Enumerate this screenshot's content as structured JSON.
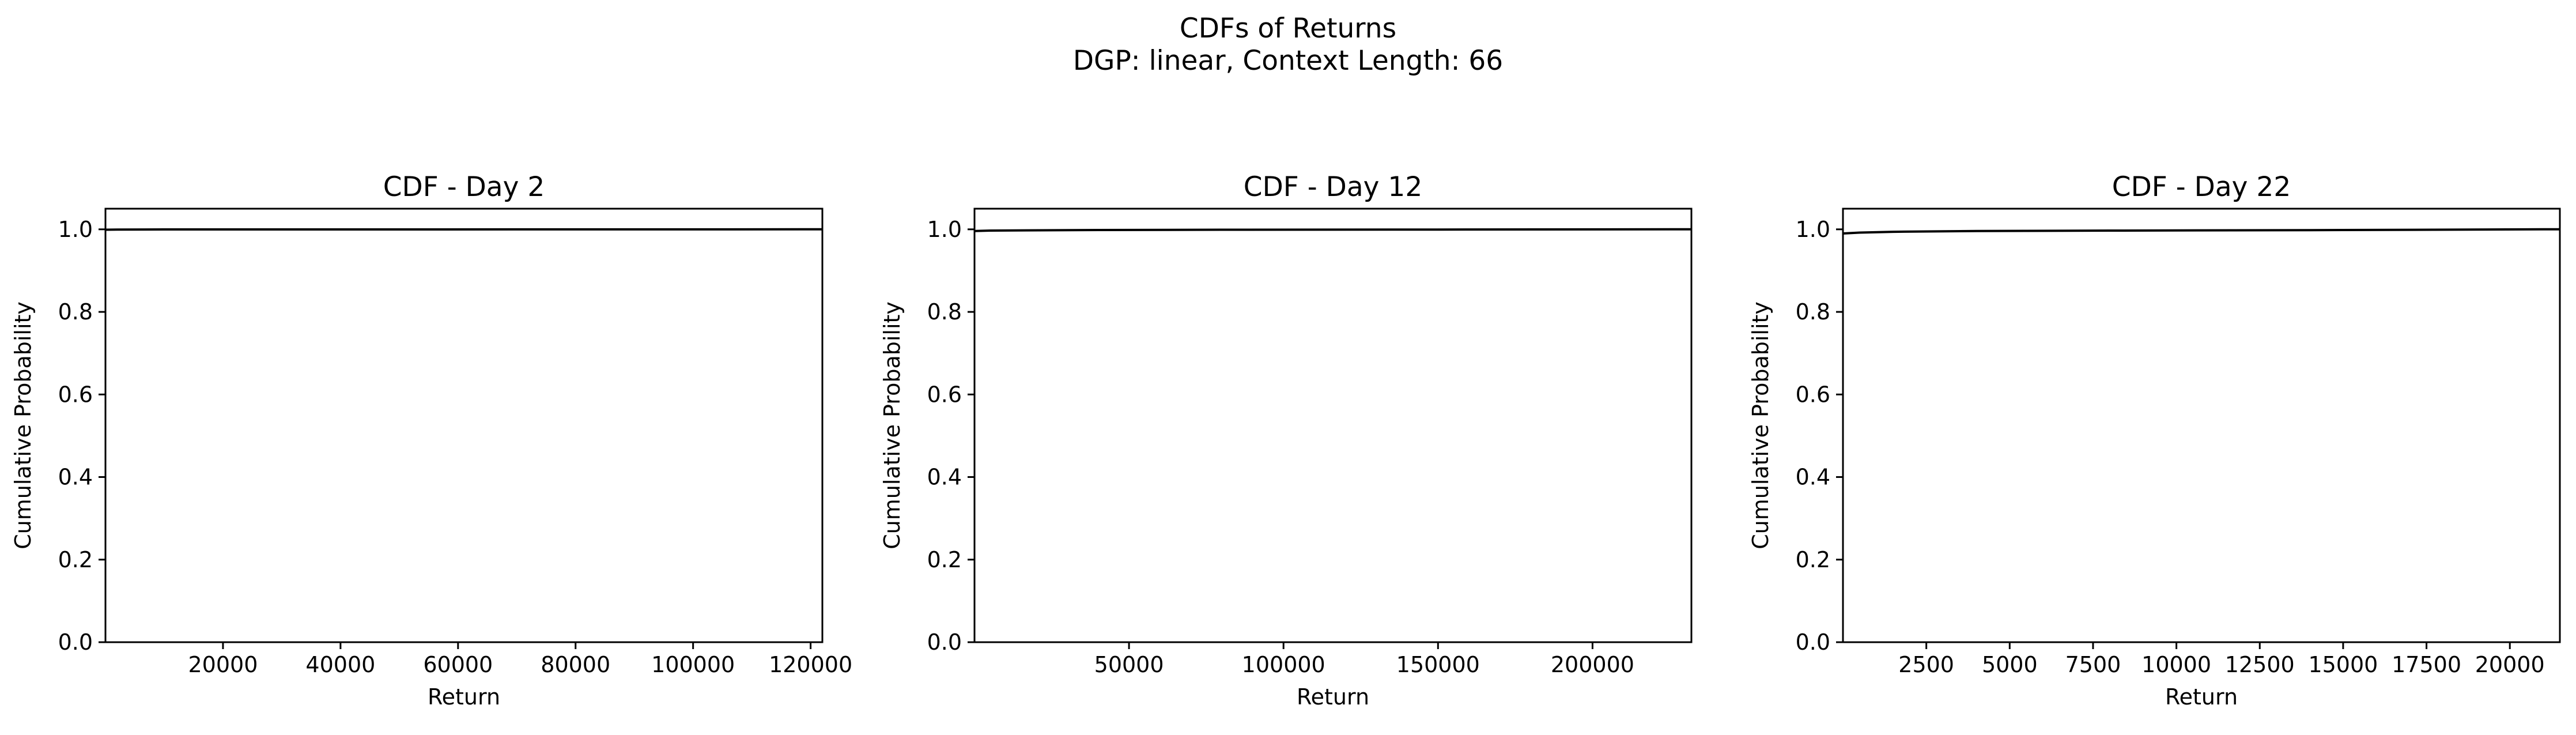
{
  "figure": {
    "title_line1": "CDFs of Returns",
    "title_line2": "DGP: linear, Context Length: 66"
  },
  "chart_data": [
    {
      "type": "line",
      "title": "CDF - Day 2",
      "xlabel": "Return",
      "ylabel": "Cumulative Probability",
      "xlim": [
        0,
        122000
      ],
      "ylim": [
        0.0,
        1.05
      ],
      "xticks": [
        20000,
        40000,
        60000,
        80000,
        100000,
        120000
      ],
      "xtick_labels": [
        "20000",
        "40000",
        "60000",
        "80000",
        "100000",
        "120000"
      ],
      "yticks": [
        0.0,
        0.2,
        0.4,
        0.6,
        0.8,
        1.0
      ],
      "ytick_labels": [
        "0.0",
        "0.2",
        "0.4",
        "0.6",
        "0.8",
        "1.0"
      ],
      "grid": false,
      "series": [
        {
          "color": "#000000",
          "x": [
            0,
            2000,
            10000,
            40000,
            80000,
            118000,
            122000
          ],
          "y": [
            0.999,
            0.9995,
            0.9997,
            0.9998,
            0.9999,
            1.0,
            1.0
          ]
        }
      ]
    },
    {
      "type": "line",
      "title": "CDF - Day 12",
      "xlabel": "Return",
      "ylabel": "Cumulative Probability",
      "xlim": [
        0,
        232000
      ],
      "ylim": [
        0.0,
        1.05
      ],
      "xticks": [
        50000,
        100000,
        150000,
        200000
      ],
      "xtick_labels": [
        "50000",
        "100000",
        "150000",
        "200000"
      ],
      "yticks": [
        0.0,
        0.2,
        0.4,
        0.6,
        0.8,
        1.0
      ],
      "ytick_labels": [
        "0.0",
        "0.2",
        "0.4",
        "0.6",
        "0.8",
        "1.0"
      ],
      "grid": false,
      "series": [
        {
          "color": "#000000",
          "x": [
            0,
            5000,
            30000,
            80000,
            150000,
            225000,
            232000
          ],
          "y": [
            0.996,
            0.997,
            0.998,
            0.999,
            0.9995,
            1.0,
            1.0
          ]
        }
      ]
    },
    {
      "type": "line",
      "title": "CDF - Day 22",
      "xlabel": "Return",
      "ylabel": "Cumulative Probability",
      "xlim": [
        0,
        21500
      ],
      "ylim": [
        0.0,
        1.05
      ],
      "xticks": [
        2500,
        5000,
        7500,
        10000,
        12500,
        15000,
        17500,
        20000
      ],
      "xtick_labels": [
        "2500",
        "5000",
        "7500",
        "10000",
        "12500",
        "15000",
        "17500",
        "20000"
      ],
      "yticks": [
        0.0,
        0.2,
        0.4,
        0.6,
        0.8,
        1.0
      ],
      "ytick_labels": [
        "0.0",
        "0.2",
        "0.4",
        "0.6",
        "0.8",
        "1.0"
      ],
      "grid": false,
      "series": [
        {
          "color": "#000000",
          "x": [
            0,
            500,
            1500,
            4000,
            8000,
            14000,
            21000,
            21500
          ],
          "y": [
            0.99,
            0.992,
            0.994,
            0.996,
            0.997,
            0.998,
            1.0,
            1.0
          ]
        }
      ]
    }
  ]
}
